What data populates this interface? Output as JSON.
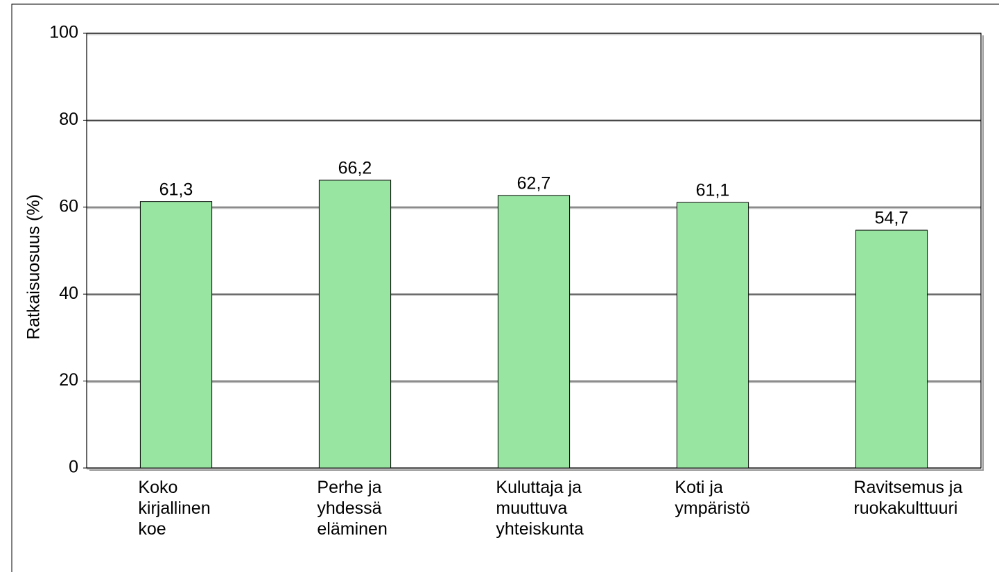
{
  "chart_data": {
    "type": "bar",
    "y_label": "Ratkaisuosuus (%)",
    "categories": [
      "Koko\nkirjallinen\nkoe",
      "Perhe ja\nyhdessä\neläminen",
      "Kuluttaja ja\nmuuttuva\nyhteiskunta",
      "Koti ja\nympäristö",
      "Ravitsemus ja\nruokakulttuuri"
    ],
    "values": [
      61.3,
      66.2,
      62.7,
      61.1,
      54.7
    ],
    "value_labels": [
      "61,3",
      "66,2",
      "62,7",
      "61,1",
      "54,7"
    ],
    "color": "#98e4a1",
    "ylim": [
      0,
      100
    ],
    "yticks": [
      0,
      20,
      40,
      60,
      80,
      100
    ],
    "grid": true
  }
}
